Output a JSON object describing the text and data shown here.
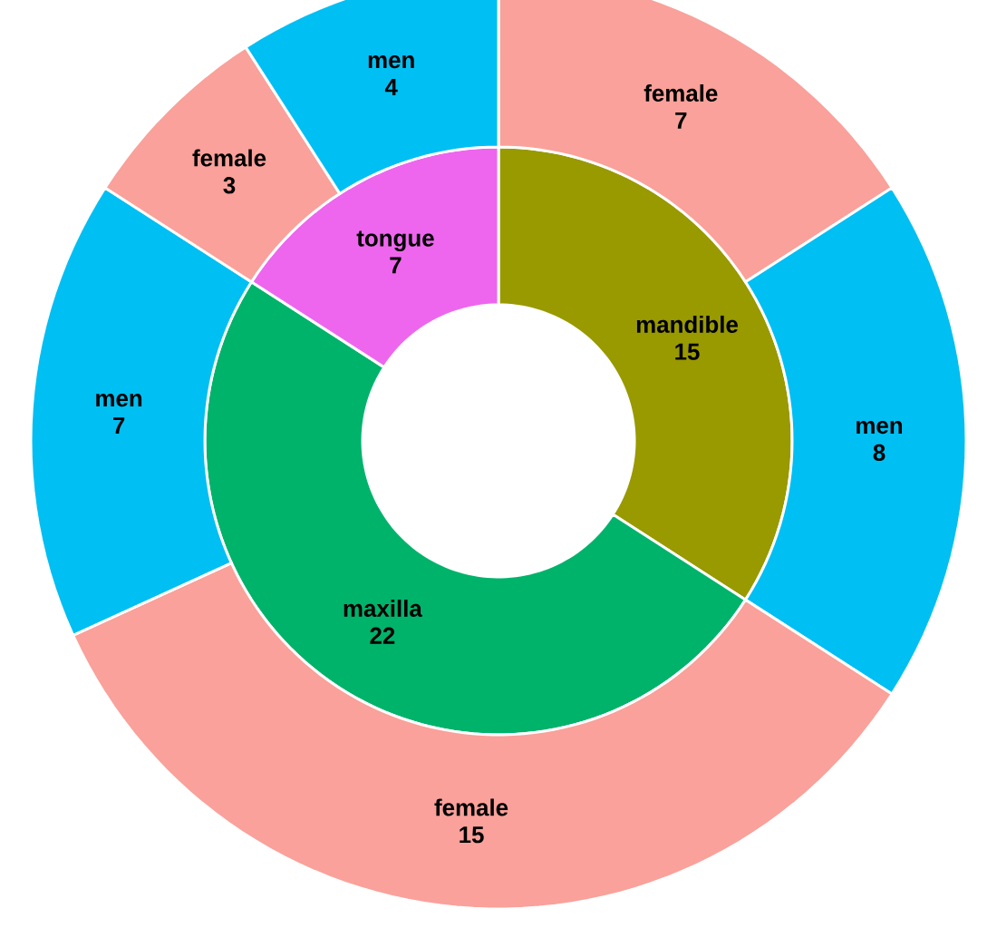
{
  "chart_data": [
    {
      "type": "donut",
      "categories": [
        "mandible",
        "maxilla",
        "tongue"
      ],
      "values": [
        15,
        22,
        7
      ],
      "colors": [
        "#999900",
        "#00b36b",
        "#ee66ee"
      ],
      "data_labels": true
    },
    {
      "type": "donut",
      "categories": [
        "female",
        "men",
        "female",
        "men",
        "female",
        "men"
      ],
      "values": [
        7,
        8,
        15,
        7,
        3,
        4
      ],
      "colors": [
        "#f9a19a",
        "#00bff3",
        "#f9a19a",
        "#00bff3",
        "#f9a19a",
        "#00bff3"
      ],
      "data_labels": true
    }
  ]
}
